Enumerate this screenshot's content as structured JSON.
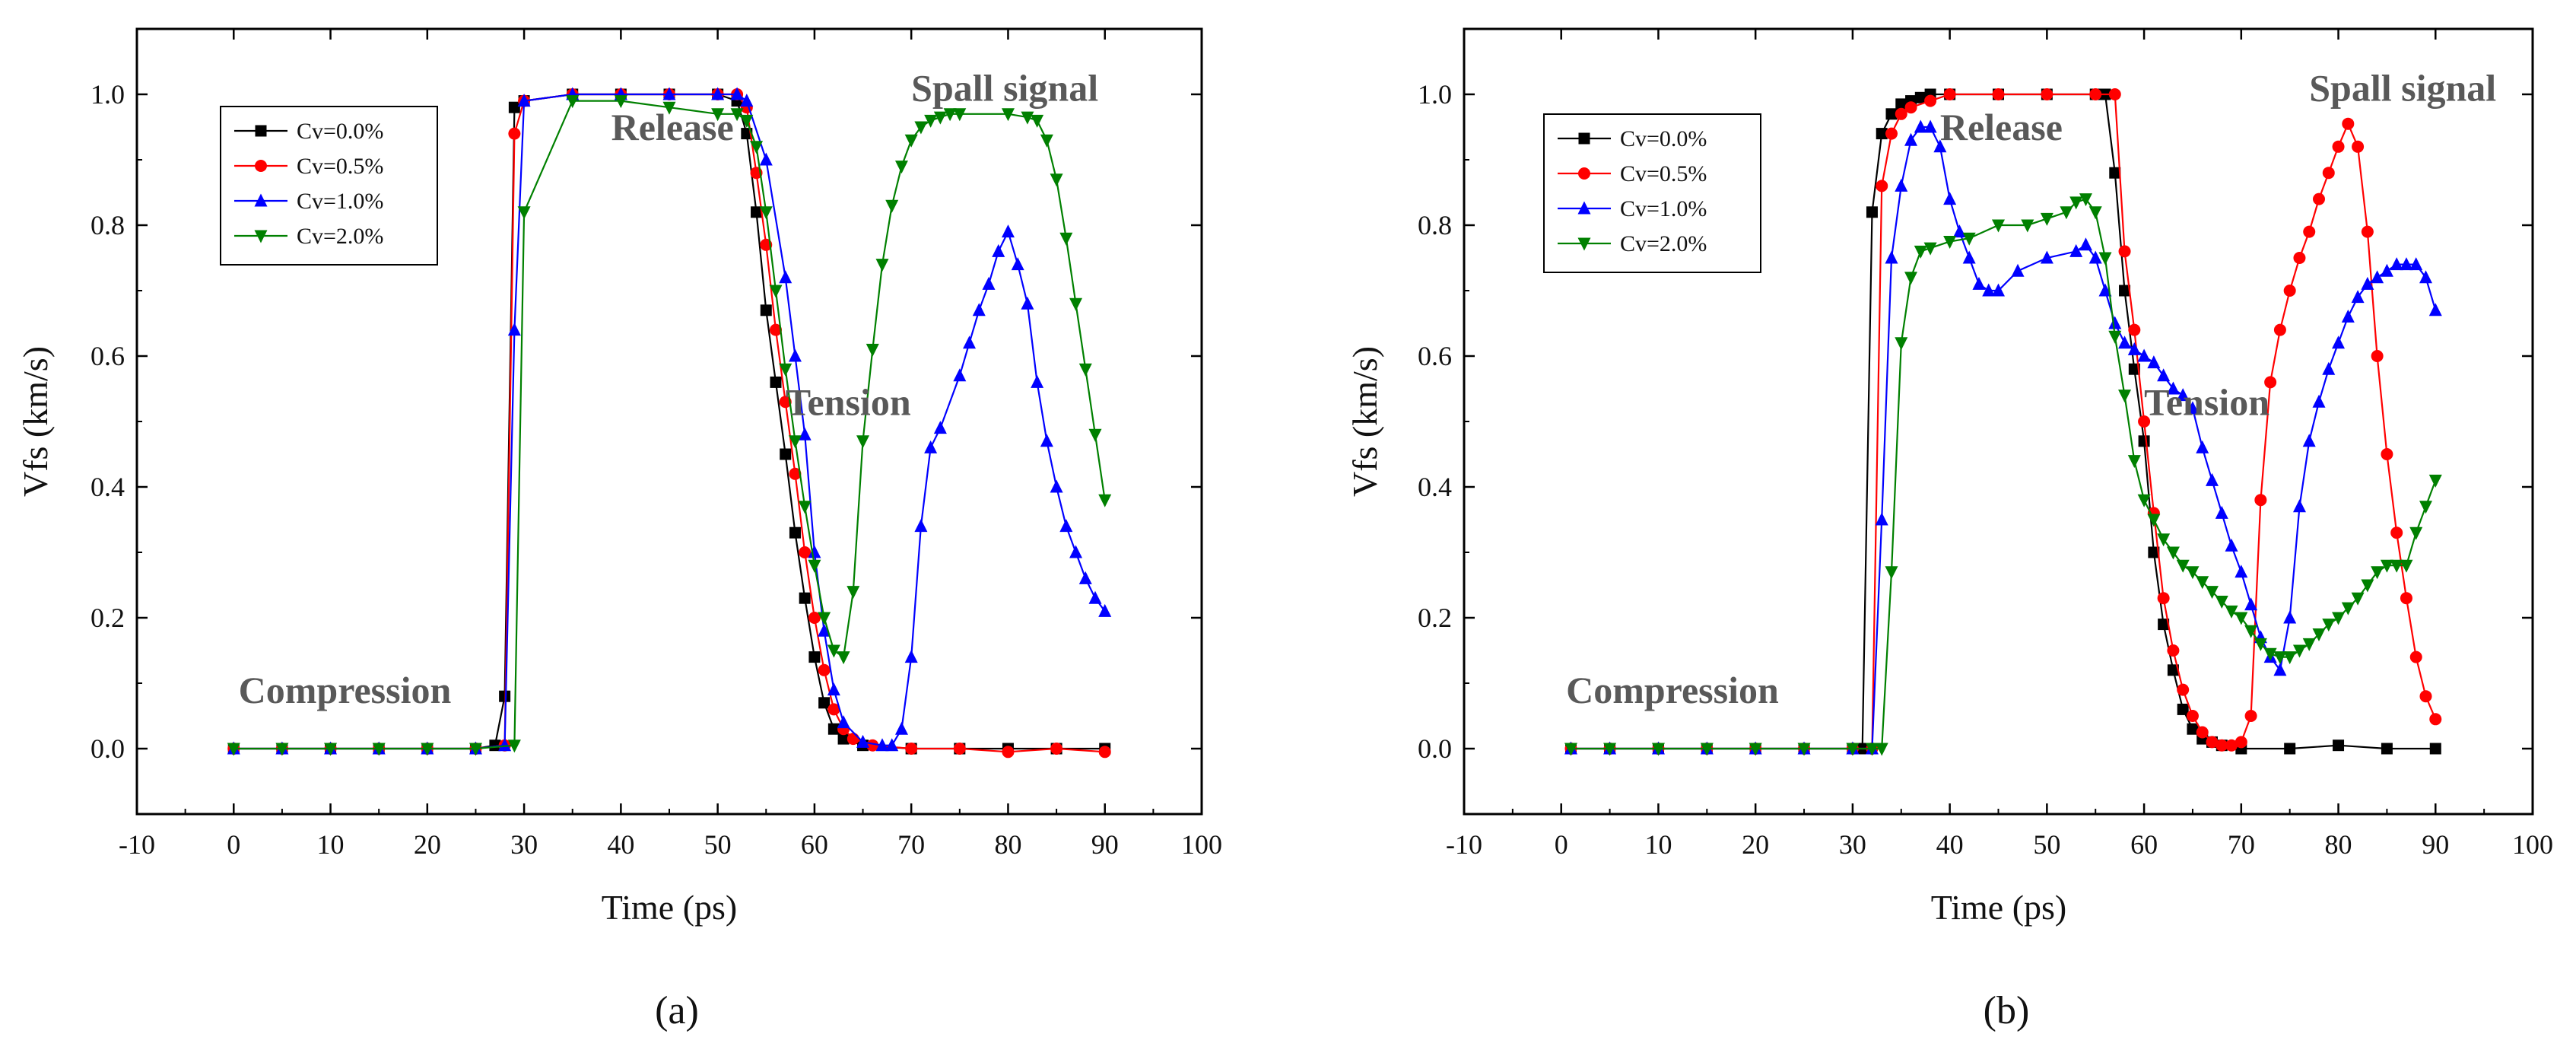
{
  "chart_data": [
    {
      "type": "line",
      "caption": "(a)",
      "xlabel": "Time (ps)",
      "ylabel": "Vfs (km/s)",
      "xlim": [
        -10,
        100
      ],
      "ylim": [
        -0.1,
        1.1
      ],
      "xticks": [
        -10,
        0,
        10,
        20,
        30,
        40,
        50,
        60,
        70,
        80,
        90,
        100
      ],
      "yticks": [
        0.0,
        0.2,
        0.4,
        0.6,
        0.8,
        1.0
      ],
      "annotations": [
        {
          "text": "Compression",
          "x": 0.5,
          "y": 0.07
        },
        {
          "text": "Release",
          "x": 39,
          "y": 0.93
        },
        {
          "text": "Tension",
          "x": 57,
          "y": 0.51
        },
        {
          "text": "Spall signal",
          "x": 70,
          "y": 0.99
        }
      ],
      "legend": {
        "position": "top-left"
      },
      "series": [
        {
          "name": "Cv=0.0%",
          "color": "#000000",
          "marker": "square",
          "x": [
            0,
            5,
            10,
            15,
            20,
            25,
            27,
            28,
            29,
            30,
            35,
            40,
            45,
            50,
            52,
            53,
            54,
            55,
            56,
            57,
            58,
            59,
            60,
            61,
            62,
            63,
            65,
            70,
            75,
            80,
            85,
            90
          ],
          "y": [
            0,
            0,
            0,
            0,
            0,
            0,
            0.005,
            0.08,
            0.98,
            0.99,
            1.0,
            1.0,
            1.0,
            1.0,
            0.99,
            0.94,
            0.82,
            0.67,
            0.56,
            0.45,
            0.33,
            0.23,
            0.14,
            0.07,
            0.03,
            0.015,
            0.005,
            0.0,
            0.0,
            0.0,
            0.0,
            0.0
          ]
        },
        {
          "name": "Cv=0.5%",
          "color": "#ff0000",
          "marker": "circle",
          "x": [
            0,
            5,
            10,
            15,
            20,
            25,
            28,
            29,
            30,
            35,
            40,
            45,
            50,
            52,
            53,
            54,
            55,
            56,
            57,
            58,
            59,
            60,
            61,
            62,
            63,
            64,
            66,
            70,
            75,
            80,
            85,
            90
          ],
          "y": [
            0,
            0,
            0,
            0,
            0,
            0,
            0.005,
            0.94,
            0.99,
            1.0,
            1.0,
            1.0,
            1.0,
            1.0,
            0.98,
            0.88,
            0.77,
            0.64,
            0.53,
            0.42,
            0.3,
            0.2,
            0.12,
            0.06,
            0.03,
            0.015,
            0.005,
            0.0,
            0.0,
            -0.005,
            0.0,
            -0.005
          ]
        },
        {
          "name": "Cv=1.0%",
          "color": "#0000ff",
          "marker": "triangle-up",
          "x": [
            0,
            5,
            10,
            15,
            20,
            25,
            28,
            29,
            30,
            35,
            40,
            45,
            50,
            52,
            53,
            55,
            57,
            58,
            59,
            60,
            61,
            62,
            63,
            65,
            67,
            68,
            69,
            70,
            71,
            72,
            73,
            75,
            76,
            77,
            78,
            79,
            80,
            81,
            82,
            83,
            84,
            85,
            86,
            87,
            88,
            89,
            90
          ],
          "y": [
            0,
            0,
            0,
            0,
            0,
            0,
            0.005,
            0.64,
            0.99,
            1.0,
            1.0,
            1.0,
            1.0,
            1.0,
            0.99,
            0.9,
            0.72,
            0.6,
            0.48,
            0.3,
            0.18,
            0.09,
            0.04,
            0.01,
            0.005,
            0.005,
            0.03,
            0.14,
            0.34,
            0.46,
            0.49,
            0.57,
            0.62,
            0.67,
            0.71,
            0.76,
            0.79,
            0.74,
            0.68,
            0.56,
            0.47,
            0.4,
            0.34,
            0.3,
            0.26,
            0.23,
            0.21
          ]
        },
        {
          "name": "Cv=2.0%",
          "color": "#008000",
          "marker": "triangle-down",
          "x": [
            0,
            5,
            10,
            15,
            20,
            25,
            29,
            30,
            35,
            40,
            45,
            50,
            52,
            53,
            54,
            55,
            56,
            57,
            58,
            59,
            60,
            61,
            62,
            63,
            64,
            65,
            66,
            67,
            68,
            69,
            70,
            71,
            72,
            73,
            74,
            75,
            80,
            82,
            83,
            84,
            85,
            86,
            87,
            88,
            89,
            90
          ],
          "y": [
            0,
            0,
            0,
            0,
            0,
            0,
            0.005,
            0.82,
            0.99,
            0.99,
            0.98,
            0.97,
            0.97,
            0.96,
            0.92,
            0.82,
            0.7,
            0.58,
            0.47,
            0.37,
            0.28,
            0.2,
            0.15,
            0.14,
            0.24,
            0.47,
            0.61,
            0.74,
            0.83,
            0.89,
            0.93,
            0.95,
            0.96,
            0.965,
            0.97,
            0.97,
            0.97,
            0.965,
            0.96,
            0.93,
            0.87,
            0.78,
            0.68,
            0.58,
            0.48,
            0.38
          ]
        }
      ]
    },
    {
      "type": "line",
      "caption": "(b)",
      "xlabel": "Time (ps)",
      "ylabel": "Vfs (km/s)",
      "xlim": [
        -10,
        100
      ],
      "ylim": [
        -0.1,
        1.1
      ],
      "xticks": [
        -10,
        0,
        10,
        20,
        30,
        40,
        50,
        60,
        70,
        80,
        90,
        100
      ],
      "yticks": [
        0.0,
        0.2,
        0.4,
        0.6,
        0.8,
        1.0
      ],
      "annotations": [
        {
          "text": "Compression",
          "x": 0.5,
          "y": 0.07
        },
        {
          "text": "Release",
          "x": 39,
          "y": 0.93
        },
        {
          "text": "Tension",
          "x": 60,
          "y": 0.51
        },
        {
          "text": "Spall signal",
          "x": 77,
          "y": 0.99
        }
      ],
      "legend": {
        "position": "top-left"
      },
      "series": [
        {
          "name": "Cv=0.0%",
          "color": "#000000",
          "marker": "square",
          "x": [
            1,
            5,
            10,
            15,
            20,
            25,
            30,
            31,
            32,
            33,
            34,
            35,
            36,
            37,
            38,
            40,
            45,
            50,
            55,
            56,
            57,
            58,
            59,
            60,
            61,
            62,
            63,
            64,
            65,
            66,
            67,
            68,
            70,
            75,
            80,
            85,
            90
          ],
          "y": [
            0,
            0,
            0,
            0,
            0,
            0,
            0,
            0.0,
            0.82,
            0.94,
            0.97,
            0.985,
            0.99,
            0.995,
            1.0,
            1.0,
            1.0,
            1.0,
            1.0,
            1.0,
            0.88,
            0.7,
            0.58,
            0.47,
            0.3,
            0.19,
            0.12,
            0.06,
            0.03,
            0.015,
            0.01,
            0.005,
            0.0,
            0.0,
            0.005,
            0.0,
            0.0
          ]
        },
        {
          "name": "Cv=0.5%",
          "color": "#ff0000",
          "marker": "circle",
          "x": [
            1,
            5,
            10,
            15,
            20,
            25,
            30,
            32,
            33,
            34,
            35,
            36,
            38,
            40,
            45,
            50,
            55,
            57,
            58,
            59,
            60,
            61,
            62,
            63,
            64,
            65,
            66,
            67,
            68,
            69,
            70,
            71,
            72,
            73,
            74,
            75,
            76,
            77,
            78,
            79,
            80,
            81,
            82,
            83,
            84,
            85,
            86,
            87,
            88,
            89,
            90
          ],
          "y": [
            0,
            0,
            0,
            0,
            0,
            0,
            0,
            0.0,
            0.86,
            0.94,
            0.97,
            0.98,
            0.99,
            1.0,
            1.0,
            1.0,
            1.0,
            1.0,
            0.76,
            0.64,
            0.5,
            0.36,
            0.23,
            0.15,
            0.09,
            0.05,
            0.025,
            0.01,
            0.005,
            0.005,
            0.01,
            0.05,
            0.38,
            0.56,
            0.64,
            0.7,
            0.75,
            0.79,
            0.84,
            0.88,
            0.92,
            0.955,
            0.92,
            0.79,
            0.6,
            0.45,
            0.33,
            0.23,
            0.14,
            0.08,
            0.045
          ]
        },
        {
          "name": "Cv=1.0%",
          "color": "#0000ff",
          "marker": "triangle-up",
          "x": [
            1,
            5,
            10,
            15,
            20,
            25,
            30,
            32,
            33,
            34,
            35,
            36,
            37,
            38,
            39,
            40,
            41,
            42,
            43,
            44,
            45,
            47,
            50,
            53,
            54,
            55,
            56,
            57,
            58,
            59,
            60,
            61,
            62,
            63,
            64,
            65,
            66,
            67,
            68,
            69,
            70,
            71,
            72,
            73,
            74,
            75,
            76,
            77,
            78,
            79,
            80,
            81,
            82,
            83,
            84,
            85,
            86,
            87,
            88,
            89,
            90
          ],
          "y": [
            0,
            0,
            0,
            0,
            0,
            0,
            0,
            0.0,
            0.35,
            0.75,
            0.86,
            0.93,
            0.95,
            0.95,
            0.92,
            0.84,
            0.79,
            0.75,
            0.71,
            0.7,
            0.7,
            0.73,
            0.75,
            0.76,
            0.77,
            0.75,
            0.7,
            0.65,
            0.62,
            0.61,
            0.6,
            0.59,
            0.57,
            0.55,
            0.54,
            0.52,
            0.46,
            0.41,
            0.36,
            0.31,
            0.27,
            0.22,
            0.17,
            0.14,
            0.12,
            0.2,
            0.37,
            0.47,
            0.53,
            0.58,
            0.62,
            0.66,
            0.69,
            0.71,
            0.72,
            0.73,
            0.74,
            0.74,
            0.74,
            0.72,
            0.67
          ]
        },
        {
          "name": "Cv=2.0%",
          "color": "#008000",
          "marker": "triangle-down",
          "x": [
            1,
            5,
            10,
            15,
            20,
            25,
            30,
            32,
            33,
            34,
            35,
            36,
            37,
            38,
            40,
            42,
            45,
            48,
            50,
            52,
            53,
            54,
            55,
            56,
            57,
            58,
            59,
            60,
            61,
            62,
            63,
            64,
            65,
            66,
            67,
            68,
            69,
            70,
            71,
            72,
            73,
            74,
            75,
            76,
            77,
            78,
            79,
            80,
            81,
            82,
            83,
            84,
            85,
            86,
            87,
            88,
            89,
            90
          ],
          "y": [
            0,
            0,
            0,
            0,
            0,
            0,
            0,
            0.0,
            0.0,
            0.27,
            0.62,
            0.72,
            0.76,
            0.765,
            0.775,
            0.78,
            0.8,
            0.8,
            0.81,
            0.82,
            0.835,
            0.84,
            0.82,
            0.75,
            0.63,
            0.54,
            0.44,
            0.38,
            0.35,
            0.32,
            0.3,
            0.28,
            0.27,
            0.255,
            0.24,
            0.225,
            0.21,
            0.2,
            0.18,
            0.16,
            0.145,
            0.14,
            0.14,
            0.15,
            0.16,
            0.175,
            0.19,
            0.2,
            0.215,
            0.23,
            0.25,
            0.27,
            0.28,
            0.28,
            0.28,
            0.33,
            0.37,
            0.41
          ]
        }
      ]
    }
  ]
}
